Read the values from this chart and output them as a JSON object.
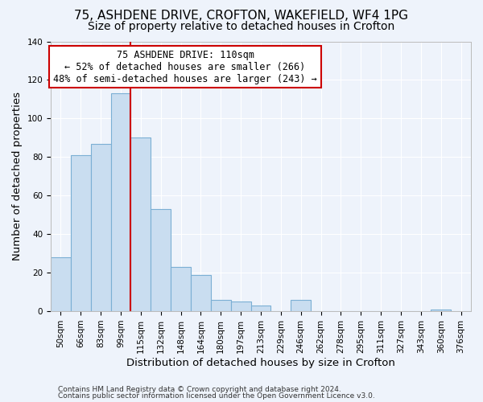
{
  "title1": "75, ASHDENE DRIVE, CROFTON, WAKEFIELD, WF4 1PG",
  "title2": "Size of property relative to detached houses in Crofton",
  "xlabel": "Distribution of detached houses by size in Crofton",
  "ylabel": "Number of detached properties",
  "bar_labels": [
    "50sqm",
    "66sqm",
    "83sqm",
    "99sqm",
    "115sqm",
    "132sqm",
    "148sqm",
    "164sqm",
    "180sqm",
    "197sqm",
    "213sqm",
    "229sqm",
    "246sqm",
    "262sqm",
    "278sqm",
    "295sqm",
    "311sqm",
    "327sqm",
    "343sqm",
    "360sqm",
    "376sqm"
  ],
  "bar_values": [
    28,
    81,
    87,
    113,
    90,
    53,
    23,
    19,
    6,
    5,
    3,
    0,
    6,
    0,
    0,
    0,
    0,
    0,
    0,
    1,
    0
  ],
  "bar_color": "#c9ddf0",
  "bar_edge_color": "#7bafd4",
  "vline_color": "#cc0000",
  "vline_x_index": 3.5,
  "annotation_title": "75 ASHDENE DRIVE: 110sqm",
  "annotation_line1": "← 52% of detached houses are smaller (266)",
  "annotation_line2": "48% of semi-detached houses are larger (243) →",
  "annotation_box_edge": "#cc0000",
  "annotation_box_face": "#ffffff",
  "ylim": [
    0,
    140
  ],
  "yticks": [
    0,
    20,
    40,
    60,
    80,
    100,
    120,
    140
  ],
  "footer1": "Contains HM Land Registry data © Crown copyright and database right 2024.",
  "footer2": "Contains public sector information licensed under the Open Government Licence v3.0.",
  "background_color": "#eef3fb",
  "plot_background": "#eef3fb",
  "grid_color": "#ffffff",
  "title_fontsize": 11,
  "subtitle_fontsize": 10,
  "tick_fontsize": 7.5,
  "label_fontsize": 9.5,
  "annotation_fontsize": 8.5,
  "footer_fontsize": 6.5
}
